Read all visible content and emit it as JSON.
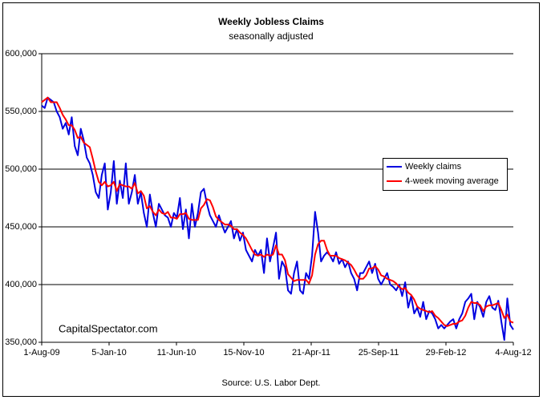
{
  "chart_data": {
    "type": "line",
    "title": "Weekly Jobless Claims",
    "subtitle": "seasonally adjusted",
    "source": "Source: U.S. Labor Dept.",
    "annotation": "CapitalSpectator.com",
    "x": [
      "2009-08-01",
      "2009-08-08",
      "2009-08-15",
      "2009-08-22",
      "2009-08-29",
      "2009-09-05",
      "2009-09-12",
      "2009-09-19",
      "2009-09-26",
      "2009-10-03",
      "2009-10-10",
      "2009-10-17",
      "2009-10-24",
      "2009-10-31",
      "2009-11-07",
      "2009-11-14",
      "2009-11-21",
      "2009-11-28",
      "2009-12-05",
      "2009-12-12",
      "2009-12-19",
      "2009-12-26",
      "2010-01-02",
      "2010-01-09",
      "2010-01-16",
      "2010-01-23",
      "2010-01-30",
      "2010-02-06",
      "2010-02-13",
      "2010-02-20",
      "2010-02-27",
      "2010-03-06",
      "2010-03-13",
      "2010-03-20",
      "2010-03-27",
      "2010-04-03",
      "2010-04-10",
      "2010-04-17",
      "2010-04-24",
      "2010-05-01",
      "2010-05-08",
      "2010-05-15",
      "2010-05-22",
      "2010-05-29",
      "2010-06-05",
      "2010-06-12",
      "2010-06-19",
      "2010-06-26",
      "2010-07-03",
      "2010-07-10",
      "2010-07-17",
      "2010-07-24",
      "2010-07-31",
      "2010-08-07",
      "2010-08-14",
      "2010-08-21",
      "2010-08-28",
      "2010-09-04",
      "2010-09-11",
      "2010-09-18",
      "2010-09-25",
      "2010-10-02",
      "2010-10-09",
      "2010-10-16",
      "2010-10-23",
      "2010-10-30",
      "2010-11-06",
      "2010-11-13",
      "2010-11-20",
      "2010-11-27",
      "2010-12-04",
      "2010-12-11",
      "2010-12-18",
      "2010-12-25",
      "2011-01-01",
      "2011-01-08",
      "2011-01-15",
      "2011-01-22",
      "2011-01-29",
      "2011-02-05",
      "2011-02-12",
      "2011-02-19",
      "2011-02-26",
      "2011-03-05",
      "2011-03-12",
      "2011-03-19",
      "2011-03-26",
      "2011-04-02",
      "2011-04-09",
      "2011-04-16",
      "2011-04-23",
      "2011-04-30",
      "2011-05-07",
      "2011-05-14",
      "2011-05-21",
      "2011-05-28",
      "2011-06-04",
      "2011-06-11",
      "2011-06-18",
      "2011-06-25",
      "2011-07-02",
      "2011-07-09",
      "2011-07-16",
      "2011-07-23",
      "2011-07-30",
      "2011-08-06",
      "2011-08-13",
      "2011-08-20",
      "2011-08-27",
      "2011-09-03",
      "2011-09-10",
      "2011-09-17",
      "2011-09-24",
      "2011-10-01",
      "2011-10-08",
      "2011-10-15",
      "2011-10-22",
      "2011-10-29",
      "2011-11-05",
      "2011-11-12",
      "2011-11-19",
      "2011-11-26",
      "2011-12-03",
      "2011-12-10",
      "2011-12-17",
      "2011-12-24",
      "2011-12-31",
      "2012-01-07",
      "2012-01-14",
      "2012-01-21",
      "2012-01-28",
      "2012-02-04",
      "2012-02-11",
      "2012-02-18",
      "2012-02-25",
      "2012-03-03",
      "2012-03-10",
      "2012-03-17",
      "2012-03-24",
      "2012-03-31",
      "2012-04-07",
      "2012-04-14",
      "2012-04-21",
      "2012-04-28",
      "2012-05-05",
      "2012-05-12",
      "2012-05-19",
      "2012-05-26",
      "2012-06-02",
      "2012-06-09",
      "2012-06-16",
      "2012-06-23",
      "2012-06-30",
      "2012-07-07",
      "2012-07-14",
      "2012-07-21",
      "2012-07-28",
      "2012-08-04"
    ],
    "series": [
      {
        "name": "Weekly claims",
        "color": "#0000e0",
        "values": [
          555000,
          553000,
          562000,
          560000,
          558000,
          550000,
          545000,
          535000,
          540000,
          530000,
          545000,
          520000,
          512000,
          535000,
          525000,
          510000,
          505000,
          495000,
          480000,
          475000,
          495000,
          505000,
          465000,
          480000,
          507000,
          470000,
          490000,
          475000,
          505000,
          470000,
          480000,
          495000,
          470000,
          480000,
          462000,
          450000,
          478000,
          462000,
          450000,
          470000,
          465000,
          460000,
          458000,
          450000,
          462000,
          458000,
          475000,
          448000,
          465000,
          440000,
          470000,
          450000,
          462000,
          480000,
          483000,
          470000,
          460000,
          455000,
          450000,
          460000,
          452000,
          445000,
          450000,
          455000,
          440000,
          448000,
          438000,
          445000,
          430000,
          425000,
          420000,
          430000,
          425000,
          430000,
          410000,
          440000,
          420000,
          432000,
          445000,
          405000,
          420000,
          415000,
          395000,
          392000,
          410000,
          420000,
          395000,
          392000,
          410000,
          405000,
          425000,
          463000,
          445000,
          420000,
          425000,
          428000,
          425000,
          420000,
          428000,
          418000,
          422000,
          415000,
          420000,
          410000,
          405000,
          395000,
          410000,
          410000,
          415000,
          420000,
          410000,
          418000,
          405000,
          400000,
          405000,
          410000,
          400000,
          398000,
          395000,
          400000,
          390000,
          402000,
          380000,
          390000,
          375000,
          380000,
          372000,
          385000,
          370000,
          377000,
          375000,
          370000,
          362000,
          365000,
          362000,
          365000,
          368000,
          370000,
          362000,
          370000,
          375000,
          385000,
          388000,
          392000,
          370000,
          385000,
          380000,
          372000,
          385000,
          390000,
          380000,
          378000,
          386000,
          368000,
          352000,
          388000,
          365000,
          361000
        ]
      },
      {
        "name": "4-week moving average",
        "color": "#ff0000",
        "values": [
          558000,
          560000,
          562000,
          558000,
          558000,
          558000,
          553000,
          547000,
          543000,
          538000,
          538000,
          534000,
          527000,
          528000,
          523000,
          521000,
          519000,
          509000,
          498000,
          489000,
          486000,
          489000,
          485000,
          486000,
          489000,
          481000,
          487000,
          486000,
          485000,
          485000,
          483000,
          488000,
          479000,
          481000,
          477000,
          466000,
          468000,
          463000,
          460000,
          465000,
          462000,
          461000,
          463000,
          458000,
          458000,
          457000,
          461000,
          461000,
          462000,
          457000,
          456000,
          456000,
          456000,
          466000,
          469000,
          474000,
          473000,
          467000,
          459000,
          456000,
          454000,
          452000,
          452000,
          451000,
          448000,
          448000,
          445000,
          443000,
          440000,
          435000,
          430000,
          426000,
          425000,
          426000,
          424000,
          426000,
          425000,
          426000,
          434000,
          426000,
          426000,
          421000,
          409000,
          406000,
          403000,
          404000,
          404000,
          404000,
          404000,
          401000,
          408000,
          426000,
          435000,
          438000,
          438000,
          430000,
          425000,
          425000,
          425000,
          423000,
          422000,
          421000,
          419000,
          417000,
          413000,
          408000,
          405000,
          405000,
          408000,
          414000,
          414000,
          416000,
          413000,
          408000,
          407000,
          405000,
          404000,
          403000,
          401000,
          398000,
          396000,
          397000,
          393000,
          391000,
          387000,
          381000,
          379000,
          378000,
          377000,
          376000,
          377000,
          373000,
          371000,
          368000,
          365000,
          364000,
          365000,
          366000,
          366000,
          368000,
          369000,
          373000,
          380000,
          385000,
          384000,
          384000,
          382000,
          377000,
          381000,
          382000,
          382000,
          383000,
          384000,
          378000,
          371000,
          374000,
          368000,
          367000
        ]
      }
    ],
    "ylim": [
      350000,
      600000
    ],
    "yticks": [
      {
        "value": 350000,
        "label": "350,000"
      },
      {
        "value": 400000,
        "label": "400,000"
      },
      {
        "value": 450000,
        "label": "450,000"
      },
      {
        "value": 500000,
        "label": "500,000"
      },
      {
        "value": 550000,
        "label": "550,000"
      },
      {
        "value": 600000,
        "label": "600,000"
      }
    ],
    "xlim": [
      "2009-08-01",
      "2012-08-04"
    ],
    "xticks": [
      {
        "value": "2009-08-01",
        "label": "1-Aug-09"
      },
      {
        "value": "2010-01-05",
        "label": "5-Jan-10"
      },
      {
        "value": "2010-06-11",
        "label": "11-Jun-10"
      },
      {
        "value": "2010-11-15",
        "label": "15-Nov-10"
      },
      {
        "value": "2011-04-21",
        "label": "21-Apr-11"
      },
      {
        "value": "2011-09-25",
        "label": "25-Sep-11"
      },
      {
        "value": "2012-02-29",
        "label": "29-Feb-12"
      },
      {
        "value": "2012-08-04",
        "label": "4-Aug-12"
      }
    ],
    "grid": true,
    "legend": "right"
  }
}
